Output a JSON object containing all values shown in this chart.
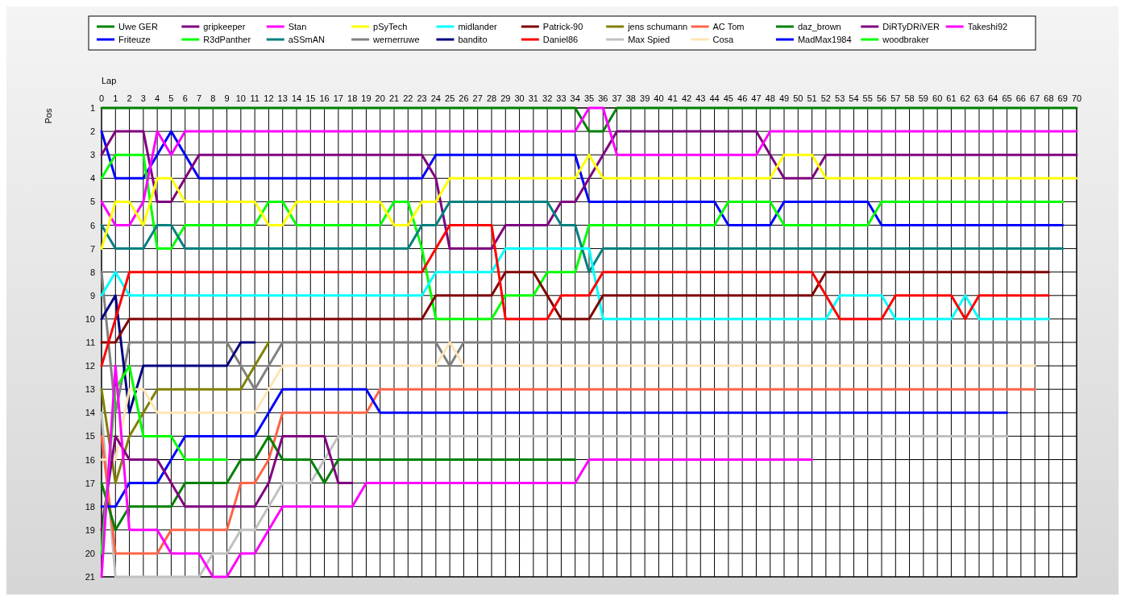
{
  "chart_data": {
    "type": "line",
    "xlabel": "Lap",
    "ylabel": "Pos",
    "legend": "top",
    "grid": true,
    "line_style": "solid",
    "x": [
      0,
      1,
      2,
      3,
      4,
      5,
      6,
      7,
      8,
      9,
      10,
      11,
      12,
      13,
      14,
      15,
      16,
      17,
      18,
      19,
      20,
      21,
      22,
      23,
      24,
      25,
      26,
      27,
      28,
      29,
      30,
      31,
      32,
      33,
      34,
      35,
      36,
      37,
      38,
      39,
      40,
      41,
      42,
      43,
      44,
      45,
      46,
      47,
      48,
      49,
      50,
      51,
      52,
      53,
      54,
      55,
      56,
      57,
      58,
      59,
      60,
      61,
      62,
      63,
      64,
      65,
      66,
      67,
      68,
      69,
      70
    ],
    "xlim": [
      0,
      70
    ],
    "xticks": [
      0,
      1,
      2,
      3,
      4,
      5,
      6,
      7,
      8,
      9,
      10,
      11,
      12,
      13,
      14,
      15,
      16,
      17,
      18,
      19,
      20,
      21,
      22,
      23,
      24,
      25,
      26,
      27,
      28,
      29,
      30,
      31,
      32,
      33,
      34,
      35,
      36,
      37,
      38,
      39,
      40,
      41,
      42,
      43,
      44,
      45,
      46,
      47,
      48,
      49,
      50,
      51,
      52,
      53,
      54,
      55,
      56,
      57,
      58,
      59,
      60,
      61,
      62,
      63,
      64,
      65,
      66,
      67,
      68,
      69,
      70
    ],
    "ylim": [
      21,
      1
    ],
    "yticks": [
      1,
      2,
      3,
      4,
      5,
      6,
      7,
      8,
      9,
      10,
      11,
      12,
      13,
      14,
      15,
      16,
      17,
      18,
      19,
      20,
      21
    ],
    "series": [
      {
        "name": "Uwe GER",
        "color": "#008000",
        "values": [
          1,
          1,
          1,
          1,
          1,
          1,
          1,
          1,
          1,
          1,
          1,
          1,
          1,
          1,
          1,
          1,
          1,
          1,
          1,
          1,
          1,
          1,
          1,
          1,
          1,
          1,
          1,
          1,
          1,
          1,
          1,
          1,
          1,
          1,
          1,
          2,
          2,
          1,
          1,
          1,
          1,
          1,
          1,
          1,
          1,
          1,
          1,
          1,
          1,
          1,
          1,
          1,
          1,
          1,
          1,
          1,
          1,
          1,
          1,
          1,
          1,
          1,
          1,
          1,
          1,
          1,
          1,
          1,
          1,
          1,
          1
        ]
      },
      {
        "name": "Friteuze",
        "color": "#0000ff",
        "values": [
          2,
          4,
          4,
          4,
          3,
          2,
          3,
          4,
          4,
          4,
          4,
          4,
          4,
          4,
          4,
          4,
          4,
          4,
          4,
          4,
          4,
          4,
          4,
          4,
          3,
          3,
          3,
          3,
          3,
          3,
          3,
          3,
          3,
          3,
          3,
          5,
          5,
          5,
          5,
          5,
          5,
          5,
          5,
          5,
          5,
          6,
          6,
          6,
          6,
          5,
          5,
          5,
          5,
          5,
          5,
          5,
          6,
          6,
          6,
          6,
          6,
          6,
          6,
          6,
          6,
          6,
          6,
          6,
          6,
          6,
          null
        ]
      },
      {
        "name": "gripkeeper",
        "color": "#800080",
        "values": [
          3,
          2,
          2,
          2,
          5,
          5,
          4,
          3,
          3,
          3,
          3,
          3,
          3,
          3,
          3,
          3,
          3,
          3,
          3,
          3,
          3,
          3,
          3,
          3,
          4,
          7,
          7,
          7,
          7,
          6,
          6,
          6,
          6,
          5,
          5,
          4,
          3,
          2,
          2,
          2,
          2,
          2,
          2,
          2,
          2,
          2,
          2,
          2,
          3,
          4,
          4,
          4,
          3,
          3,
          3,
          3,
          3,
          3,
          3,
          3,
          3,
          3,
          3,
          3,
          3,
          3,
          3,
          3,
          3,
          3,
          3
        ]
      },
      {
        "name": "R3dPanther",
        "color": "#00ff00",
        "values": [
          4,
          3,
          3,
          3,
          7,
          7,
          6,
          6,
          6,
          6,
          6,
          6,
          5,
          5,
          6,
          6,
          6,
          6,
          6,
          6,
          6,
          5,
          5,
          7,
          10,
          10,
          10,
          10,
          10,
          9,
          9,
          9,
          8,
          8,
          8,
          6,
          6,
          6,
          6,
          6,
          6,
          6,
          6,
          6,
          6,
          5,
          5,
          5,
          5,
          6,
          6,
          6,
          6,
          6,
          6,
          6,
          5,
          5,
          5,
          5,
          5,
          5,
          5,
          5,
          5,
          5,
          5,
          5,
          5,
          5,
          null
        ]
      },
      {
        "name": "Stan",
        "color": "#ff00ff",
        "values": [
          5,
          6,
          6,
          5,
          2,
          3,
          2,
          2,
          2,
          2,
          2,
          2,
          2,
          2,
          2,
          2,
          2,
          2,
          2,
          2,
          2,
          2,
          2,
          2,
          2,
          2,
          2,
          2,
          2,
          2,
          2,
          2,
          2,
          2,
          2,
          1,
          1,
          3,
          3,
          3,
          3,
          3,
          3,
          3,
          3,
          3,
          3,
          3,
          2,
          2,
          2,
          2,
          2,
          2,
          2,
          2,
          2,
          2,
          2,
          2,
          2,
          2,
          2,
          2,
          2,
          2,
          2,
          2,
          2,
          2,
          2
        ]
      },
      {
        "name": "aSSmAN",
        "color": "#008080",
        "values": [
          6,
          7,
          7,
          7,
          6,
          6,
          7,
          7,
          7,
          7,
          7,
          7,
          7,
          7,
          7,
          7,
          7,
          7,
          7,
          7,
          7,
          7,
          7,
          6,
          6,
          5,
          5,
          5,
          5,
          5,
          5,
          5,
          5,
          6,
          6,
          8,
          7,
          7,
          7,
          7,
          7,
          7,
          7,
          7,
          7,
          7,
          7,
          7,
          7,
          7,
          7,
          7,
          7,
          7,
          7,
          7,
          7,
          7,
          7,
          7,
          7,
          7,
          7,
          7,
          7,
          7,
          7,
          7,
          7,
          7,
          null
        ]
      },
      {
        "name": "pSyTech",
        "color": "#ffff00",
        "values": [
          7,
          5,
          5,
          6,
          4,
          4,
          5,
          5,
          5,
          5,
          5,
          5,
          6,
          6,
          5,
          5,
          5,
          5,
          5,
          5,
          5,
          6,
          6,
          5,
          5,
          4,
          4,
          4,
          4,
          4,
          4,
          4,
          4,
          4,
          4,
          3,
          4,
          4,
          4,
          4,
          4,
          4,
          4,
          4,
          4,
          4,
          4,
          4,
          4,
          3,
          3,
          3,
          4,
          4,
          4,
          4,
          4,
          4,
          4,
          4,
          4,
          4,
          4,
          4,
          4,
          4,
          4,
          4,
          4,
          4,
          4
        ]
      },
      {
        "name": "wernerruwe",
        "color": "#808080",
        "values": [
          8,
          14,
          11,
          11,
          11,
          11,
          11,
          11,
          11,
          11,
          12,
          13,
          12,
          11,
          11,
          11,
          11,
          11,
          11,
          11,
          11,
          11,
          11,
          11,
          11,
          12,
          11,
          11,
          11,
          11,
          11,
          11,
          11,
          11,
          11,
          11,
          11,
          11,
          11,
          11,
          11,
          11,
          11,
          11,
          11,
          11,
          11,
          11,
          11,
          11,
          11,
          11,
          11,
          11,
          11,
          11,
          11,
          11,
          11,
          11,
          11,
          11,
          11,
          11,
          11,
          11,
          11,
          11,
          11,
          null,
          null
        ]
      },
      {
        "name": "midlander",
        "color": "#00ffff",
        "values": [
          9,
          8,
          9,
          9,
          9,
          9,
          9,
          9,
          9,
          9,
          9,
          9,
          9,
          9,
          9,
          9,
          9,
          9,
          9,
          9,
          9,
          9,
          9,
          9,
          8,
          8,
          8,
          8,
          8,
          7,
          7,
          7,
          7,
          7,
          7,
          7,
          10,
          10,
          10,
          10,
          10,
          10,
          10,
          10,
          10,
          10,
          10,
          10,
          10,
          10,
          10,
          10,
          10,
          9,
          9,
          9,
          9,
          10,
          10,
          10,
          10,
          10,
          9,
          10,
          10,
          10,
          10,
          10,
          10,
          null,
          null
        ]
      },
      {
        "name": "bandito",
        "color": "#000080",
        "values": [
          10,
          9,
          14,
          12,
          12,
          12,
          12,
          12,
          12,
          12,
          11,
          11,
          null,
          null,
          null,
          null,
          null,
          null,
          null,
          null,
          null,
          null,
          null,
          null,
          null,
          null,
          null,
          null,
          null,
          null,
          null,
          null,
          null,
          null,
          null,
          null,
          null,
          null,
          null,
          null,
          null,
          null,
          null,
          null,
          null,
          null,
          null,
          null,
          null,
          null,
          null,
          null,
          null,
          null,
          null,
          null,
          null,
          null,
          null,
          null,
          null,
          null,
          null,
          null,
          null,
          null,
          null,
          null,
          null,
          null,
          null
        ]
      },
      {
        "name": "Patrick-90",
        "color": "#800000",
        "values": [
          11,
          11,
          10,
          10,
          10,
          10,
          10,
          10,
          10,
          10,
          10,
          10,
          10,
          10,
          10,
          10,
          10,
          10,
          10,
          10,
          10,
          10,
          10,
          10,
          9,
          9,
          9,
          9,
          9,
          8,
          8,
          8,
          9,
          10,
          10,
          10,
          9,
          9,
          9,
          9,
          9,
          9,
          9,
          9,
          9,
          9,
          9,
          9,
          9,
          9,
          9,
          9,
          8,
          8,
          8,
          8,
          8,
          8,
          8,
          8,
          8,
          8,
          8,
          8,
          8,
          8,
          8,
          8,
          8,
          null,
          null
        ]
      },
      {
        "name": "Daniel86",
        "color": "#ff0000",
        "values": [
          12,
          10,
          8,
          8,
          8,
          8,
          8,
          8,
          8,
          8,
          8,
          8,
          8,
          8,
          8,
          8,
          8,
          8,
          8,
          8,
          8,
          8,
          8,
          8,
          7,
          6,
          6,
          6,
          6,
          10,
          10,
          10,
          10,
          9,
          9,
          9,
          8,
          8,
          8,
          8,
          8,
          8,
          8,
          8,
          8,
          8,
          8,
          8,
          8,
          8,
          8,
          8,
          9,
          10,
          10,
          10,
          10,
          9,
          9,
          9,
          9,
          9,
          10,
          9,
          9,
          9,
          9,
          9,
          9,
          null,
          null
        ]
      },
      {
        "name": "jens schumann",
        "color": "#808000",
        "values": [
          13,
          17,
          15,
          14,
          13,
          13,
          13,
          13,
          13,
          13,
          13,
          12,
          11,
          null,
          null,
          null,
          null,
          null,
          null,
          null,
          null,
          null,
          null,
          null,
          null,
          null,
          null,
          null,
          null,
          null,
          null,
          null,
          null,
          null,
          null,
          null,
          null,
          null,
          null,
          null,
          null,
          null,
          null,
          null,
          null,
          null,
          null,
          null,
          null,
          null,
          null,
          null,
          null,
          null,
          null,
          null,
          null,
          null,
          null,
          null,
          null,
          null,
          null,
          null,
          null,
          null,
          null,
          null,
          null,
          null,
          null
        ]
      },
      {
        "name": "Max Spied",
        "color": "#c0c0c0",
        "values": [
          14,
          21,
          21,
          21,
          21,
          21,
          21,
          21,
          20,
          20,
          19,
          19,
          18,
          17,
          17,
          17,
          16,
          15,
          15,
          15,
          15,
          15,
          15,
          15,
          15,
          15,
          15,
          15,
          15,
          15,
          15,
          15,
          15,
          15,
          15,
          15,
          15,
          15,
          15,
          15,
          15,
          15,
          15,
          15,
          15,
          15,
          15,
          15,
          15,
          15,
          15,
          15,
          15,
          15,
          15,
          15,
          15,
          15,
          15,
          15,
          15,
          15,
          15,
          15,
          15,
          15,
          null,
          null,
          null,
          null,
          null
        ]
      },
      {
        "name": "AC Tom",
        "color": "#ff6347",
        "values": [
          15,
          20,
          20,
          20,
          20,
          19,
          19,
          19,
          19,
          19,
          17,
          17,
          16,
          14,
          14,
          14,
          14,
          14,
          14,
          14,
          13,
          13,
          13,
          13,
          13,
          13,
          13,
          13,
          13,
          13,
          13,
          13,
          13,
          13,
          13,
          13,
          13,
          13,
          13,
          13,
          13,
          13,
          13,
          13,
          13,
          13,
          13,
          13,
          13,
          13,
          13,
          13,
          13,
          13,
          13,
          13,
          13,
          13,
          13,
          13,
          13,
          13,
          13,
          13,
          13,
          13,
          13,
          13,
          null,
          null,
          null
        ]
      },
      {
        "name": "Cosa",
        "color": "#ffe4b5",
        "values": [
          16,
          16,
          13,
          13,
          14,
          14,
          14,
          14,
          14,
          14,
          14,
          14,
          13,
          12,
          12,
          12,
          12,
          12,
          12,
          12,
          12,
          12,
          12,
          12,
          12,
          11,
          12,
          12,
          12,
          12,
          12,
          12,
          12,
          12,
          12,
          12,
          12,
          12,
          12,
          12,
          12,
          12,
          12,
          12,
          12,
          12,
          12,
          12,
          12,
          12,
          12,
          12,
          12,
          12,
          12,
          12,
          12,
          12,
          12,
          12,
          12,
          12,
          12,
          12,
          12,
          12,
          12,
          12,
          null,
          null,
          null
        ]
      },
      {
        "name": "daz_brown",
        "color": "#008000",
        "values": [
          17,
          19,
          18,
          18,
          18,
          18,
          17,
          17,
          17,
          17,
          16,
          16,
          15,
          16,
          16,
          16,
          17,
          16,
          16,
          16,
          16,
          16,
          16,
          16,
          16,
          16,
          16,
          16,
          16,
          16,
          16,
          16,
          16,
          16,
          16,
          null,
          null,
          null,
          null,
          null,
          null,
          null,
          null,
          null,
          null,
          null,
          null,
          null,
          null,
          null,
          null,
          null,
          null,
          null,
          null,
          null,
          null,
          null,
          null,
          null,
          null,
          null,
          null,
          null,
          null,
          null,
          null,
          null,
          null,
          null,
          null
        ]
      },
      {
        "name": "MadMax1984",
        "color": "#0000ff",
        "values": [
          18,
          18,
          17,
          17,
          17,
          16,
          15,
          15,
          15,
          15,
          15,
          15,
          14,
          13,
          13,
          13,
          13,
          13,
          13,
          13,
          14,
          14,
          14,
          14,
          14,
          14,
          14,
          14,
          14,
          14,
          14,
          14,
          14,
          14,
          14,
          14,
          14,
          14,
          14,
          14,
          14,
          14,
          14,
          14,
          14,
          14,
          14,
          14,
          14,
          14,
          14,
          14,
          14,
          14,
          14,
          14,
          14,
          14,
          14,
          14,
          14,
          14,
          14,
          14,
          14,
          14,
          null,
          null,
          null,
          null,
          null
        ]
      },
      {
        "name": "DiRTyDRiVER",
        "color": "#800080",
        "values": [
          19,
          15,
          16,
          16,
          16,
          17,
          18,
          18,
          18,
          18,
          18,
          18,
          17,
          15,
          15,
          15,
          15,
          17,
          17,
          null,
          null,
          null,
          null,
          null,
          null,
          null,
          null,
          null,
          null,
          null,
          null,
          null,
          null,
          null,
          null,
          null,
          null,
          null,
          null,
          null,
          null,
          null,
          null,
          null,
          null,
          null,
          null,
          null,
          null,
          null,
          null,
          null,
          null,
          null,
          null,
          null,
          null,
          null,
          null,
          null,
          null,
          null,
          null,
          null,
          null,
          null,
          null,
          null,
          null,
          null,
          null
        ]
      },
      {
        "name": "woodbraker",
        "color": "#00ff00",
        "values": [
          20,
          13,
          12,
          15,
          15,
          15,
          16,
          16,
          16,
          16,
          null,
          null,
          null,
          null,
          null,
          null,
          null,
          null,
          null,
          null,
          null,
          null,
          null,
          null,
          null,
          null,
          null,
          null,
          null,
          null,
          null,
          null,
          null,
          null,
          null,
          null,
          null,
          null,
          null,
          null,
          null,
          null,
          null,
          null,
          null,
          null,
          null,
          null,
          null,
          null,
          null,
          null,
          null,
          null,
          null,
          null,
          null,
          null,
          null,
          null,
          null,
          null,
          null,
          null,
          null,
          null,
          null,
          null,
          null,
          null,
          null
        ]
      },
      {
        "name": "Takeshi92",
        "color": "#ff00ff",
        "values": [
          21,
          12,
          19,
          19,
          19,
          20,
          20,
          20,
          21,
          21,
          20,
          20,
          19,
          18,
          18,
          18,
          18,
          18,
          18,
          17,
          17,
          17,
          17,
          17,
          17,
          17,
          17,
          17,
          17,
          17,
          17,
          17,
          17,
          17,
          17,
          16,
          16,
          16,
          16,
          16,
          16,
          16,
          16,
          16,
          16,
          16,
          16,
          16,
          16,
          16,
          16,
          16,
          null,
          null,
          null,
          null,
          null,
          null,
          null,
          null,
          null,
          null,
          null,
          null,
          null,
          null,
          null,
          null,
          null,
          null,
          null
        ]
      }
    ]
  }
}
